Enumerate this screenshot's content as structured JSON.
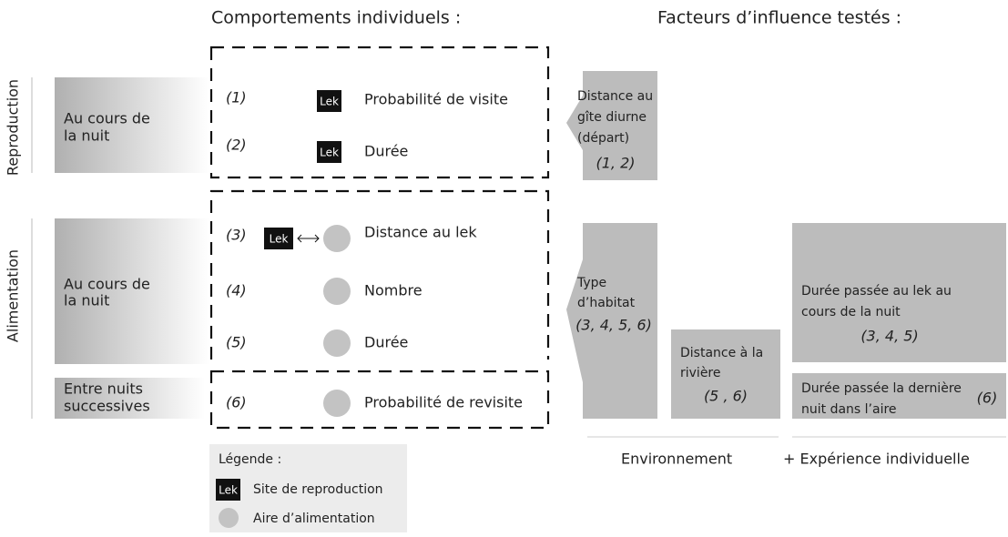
{
  "headers": {
    "behaviours": "Comportements individuels :",
    "factors": "Facteurs d’influence testés :"
  },
  "sections": [
    {
      "label": "Reproduction"
    },
    {
      "label": "Alimentation"
    }
  ],
  "periods": [
    {
      "lines": [
        "Au cours de",
        "la nuit"
      ]
    },
    {
      "lines": [
        "Au cours de",
        "la nuit"
      ]
    },
    {
      "lines": [
        "Entre nuits",
        "successives"
      ]
    }
  ],
  "behaviours": [
    {
      "number": "(1)",
      "icon": "Lek",
      "label": "Probabilité de visite"
    },
    {
      "number": "(2)",
      "icon": "Lek",
      "label": "Durée"
    },
    {
      "number": "(3)",
      "icon": "Lek",
      "label": "Distance au lek"
    },
    {
      "number": "(4)",
      "label": "Nombre"
    },
    {
      "number": "(5)",
      "label": "Durée"
    },
    {
      "number": "(6)",
      "label": "Probabilité de revisite"
    }
  ],
  "factors": [
    {
      "lines": [
        "Distance au",
        "gîte diurne",
        "(départ)"
      ],
      "refs": "(1, 2)"
    },
    {
      "lines": [
        "Type",
        "d’habitat"
      ],
      "refs": "(3, 4, 5, 6)"
    },
    {
      "lines": [
        "Distance à la",
        "rivière"
      ],
      "refs": "(5 , 6)"
    },
    {
      "lines": [
        "Durée passée au lek au",
        "cours de la nuit"
      ],
      "refs": "(3, 4, 5)"
    },
    {
      "lines": [
        "Durée passée la dernière",
        "nuit dans l’aire"
      ],
      "refs": "(6)"
    }
  ],
  "groups": [
    "Environnement",
    "+ Expérience individuelle"
  ],
  "legend": {
    "title": "Légende :",
    "items": [
      {
        "icon": "Lek",
        "label": "Site de reproduction"
      },
      {
        "label": "Aire d’alimentation"
      }
    ]
  }
}
